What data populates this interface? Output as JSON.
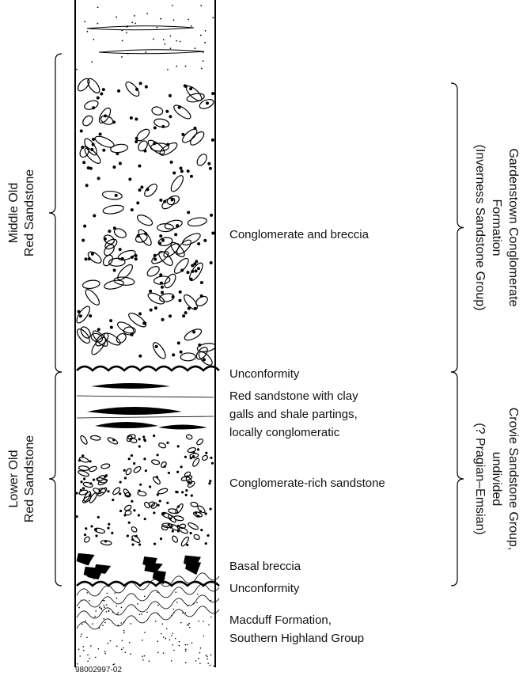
{
  "left_brackets": [
    {
      "lines": [
        "Middle Old",
        "Red Sandstone"
      ]
    },
    {
      "lines": [
        "Lower Old",
        "Red Sandstone"
      ]
    }
  ],
  "right_brackets": [
    {
      "lines": [
        "Gardenstown Conglomerate",
        "Formation",
        "(Inverness Sandstone Group)"
      ]
    },
    {
      "lines": [
        "Crovie Sandstone Group,",
        "undivided",
        "(? Pragian–Emsian)"
      ]
    }
  ],
  "units": [
    {
      "lines": [
        "Conglomerate and breccia"
      ]
    },
    {
      "lines": [
        "Unconformity"
      ]
    },
    {
      "lines": [
        "Red sandstone with clay",
        "galls and shale partings,",
        "locally conglomeratic"
      ]
    },
    {
      "lines": [
        "Conglomerate-rich sandstone"
      ]
    },
    {
      "lines": [
        "Basal breccia"
      ]
    },
    {
      "lines": [
        "Unconformity"
      ]
    },
    {
      "lines": [
        "Macduff Formation,",
        "Southern Highland Group"
      ]
    }
  ],
  "figure_id": "98002997-02"
}
